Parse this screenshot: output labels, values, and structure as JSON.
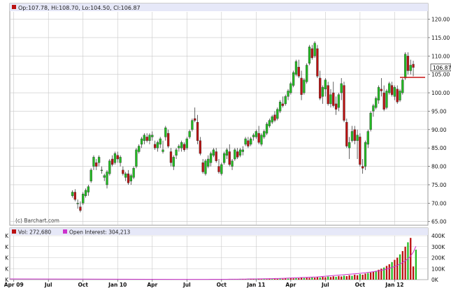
{
  "header": {
    "ohlc_text": "Op:107.78, Hi:108.70, Lo:104.50, Cl:106.87",
    "last_price": "106.87",
    "watermark": "(c) Barchart.com"
  },
  "volume_panel": {
    "vol_text": "Vol: 272,680",
    "oi_text": "Open Interest: 304,213"
  },
  "colors": {
    "up": "#22bb22",
    "down": "#bb1111",
    "oi": "#cc33cc",
    "grid": "#c8c8c8",
    "header_bg": "#e6e8f8",
    "price_line": "#cc2222"
  },
  "chart_data": [
    {
      "type": "candlestick",
      "title": "",
      "ylim": [
        64,
        122
      ],
      "y_ticks": [
        65,
        70,
        75,
        80,
        85,
        90,
        95,
        100,
        105,
        110,
        115,
        120
      ],
      "y_tick_labels": [
        "65.00",
        "70.00",
        "75.00",
        "80.00",
        "85.00",
        "90.00",
        "95.00",
        "100.00",
        "105.00",
        "110.00",
        "115.00",
        "120.00"
      ],
      "x_labels": [
        "Apr 09",
        "Jul",
        "Oct",
        "Jan 10",
        "Apr",
        "Jul",
        "Oct",
        "Jan 11",
        "Apr",
        "Jul",
        "Oct",
        "Jan 12"
      ],
      "x_label_index": [
        1,
        14,
        27,
        40,
        53,
        66,
        79,
        92,
        105,
        118,
        131,
        144
      ],
      "horizontal_line": 104.2,
      "candles": [
        [
          72,
          73.5,
          71.5,
          73
        ],
        [
          73,
          73.8,
          70.5,
          71
        ],
        [
          70,
          71,
          68.5,
          70
        ],
        [
          69,
          70.5,
          67.5,
          68
        ],
        [
          70,
          73,
          69.5,
          72.5
        ],
        [
          72,
          74,
          71.5,
          73.5
        ],
        [
          73,
          75,
          72,
          74.5
        ],
        [
          76,
          79.5,
          75.5,
          79
        ],
        [
          80,
          83,
          79,
          82.5
        ],
        [
          81,
          82,
          79,
          80
        ],
        [
          81,
          83,
          80,
          82.5
        ],
        [
          79,
          80,
          78,
          79
        ],
        [
          77,
          78,
          76,
          77.5
        ],
        [
          75,
          79,
          74,
          78.5
        ],
        [
          78,
          82,
          77.5,
          81.5
        ],
        [
          82,
          83,
          80,
          80.5
        ],
        [
          81,
          84,
          80.5,
          83.5
        ],
        [
          83,
          84,
          81,
          82
        ],
        [
          81,
          83,
          80,
          82.5
        ],
        [
          79,
          80,
          77.5,
          78
        ],
        [
          77,
          78.5,
          76,
          78
        ],
        [
          78,
          79,
          75,
          75.5
        ],
        [
          76,
          78,
          75,
          77.5
        ],
        [
          77,
          80,
          76.5,
          79.5
        ],
        [
          80,
          85,
          79.5,
          84.5
        ],
        [
          84,
          86,
          83.5,
          85.5
        ],
        [
          86,
          88,
          85,
          87.5
        ],
        [
          87,
          89,
          86,
          88.5
        ],
        [
          88,
          89,
          86.5,
          87
        ],
        [
          87,
          89,
          86,
          88.5
        ],
        [
          88,
          89.5,
          87,
          88.5
        ],
        [
          86,
          87,
          84.5,
          85
        ],
        [
          85,
          87,
          84,
          86.5
        ],
        [
          86,
          88,
          85,
          87.5
        ],
        [
          84,
          87,
          83.5,
          84.5
        ],
        [
          88,
          91,
          87,
          90.5
        ],
        [
          89,
          90,
          85,
          85.5
        ],
        [
          84,
          85,
          80,
          81
        ],
        [
          80,
          83,
          79,
          82.5
        ],
        [
          83,
          85,
          82,
          84.5
        ],
        [
          85,
          86,
          84,
          85.5
        ],
        [
          85,
          87,
          84,
          86.5
        ],
        [
          86,
          86.5,
          84,
          84.5
        ],
        [
          85,
          88,
          84.5,
          87.5
        ],
        [
          88,
          90,
          87.5,
          89.5
        ],
        [
          90,
          93,
          89.5,
          92.5
        ],
        [
          93,
          96,
          92,
          92.5
        ],
        [
          92,
          94,
          86,
          87
        ],
        [
          87,
          88,
          83,
          83.5
        ],
        [
          81,
          82,
          78,
          78.5
        ],
        [
          78,
          82,
          77.5,
          81.5
        ],
        [
          80,
          83,
          79.5,
          82
        ],
        [
          81,
          84,
          80,
          83.5
        ],
        [
          83,
          85,
          82.5,
          84.5
        ],
        [
          84,
          85,
          81,
          81.5
        ],
        [
          80,
          82,
          78,
          78.5
        ],
        [
          78,
          81,
          77.5,
          80.5
        ],
        [
          81,
          84,
          80.5,
          83.5
        ],
        [
          83,
          85,
          82,
          84.5
        ],
        [
          84,
          86,
          80,
          80.5
        ],
        [
          80,
          82,
          79,
          81.5
        ],
        [
          82,
          85,
          81.5,
          84.5
        ],
        [
          84,
          85,
          82,
          82.5
        ],
        [
          83,
          85,
          82.5,
          84.5
        ],
        [
          84,
          85.5,
          83,
          84.5
        ],
        [
          86,
          88,
          85.5,
          87.5
        ],
        [
          87,
          88,
          85,
          85.5
        ],
        [
          86,
          88,
          85.5,
          87.5
        ],
        [
          88,
          89,
          87,
          88.5
        ],
        [
          88,
          90,
          87.5,
          89.5
        ],
        [
          89,
          91,
          86,
          86.5
        ],
        [
          86,
          89,
          85.5,
          88.5
        ],
        [
          88,
          90,
          87.5,
          89.5
        ],
        [
          89,
          92,
          88.5,
          91.5
        ],
        [
          91,
          93,
          90.5,
          92.5
        ],
        [
          92,
          94,
          91.5,
          93.5
        ],
        [
          94,
          95,
          92,
          92.5
        ],
        [
          93,
          96,
          92.5,
          95.5
        ],
        [
          95,
          98,
          94.5,
          97.5
        ],
        [
          97,
          99,
          96,
          96.5
        ],
        [
          97,
          99.5,
          96.5,
          99
        ],
        [
          99,
          101,
          98,
          100.5
        ],
        [
          100,
          103,
          99.5,
          102.5
        ],
        [
          102,
          106,
          101.5,
          105.5
        ],
        [
          105,
          109,
          104.5,
          108.5
        ],
        [
          107,
          109,
          104,
          104.5
        ],
        [
          104,
          106,
          98,
          99.5
        ],
        [
          100,
          104,
          99.5,
          103.5
        ],
        [
          103,
          108,
          102.5,
          107.5
        ],
        [
          108,
          113,
          107.5,
          112.5
        ],
        [
          112,
          113,
          109,
          109.5
        ],
        [
          110,
          114,
          109.5,
          113.5
        ],
        [
          112,
          113,
          104,
          104.5
        ],
        [
          104,
          106,
          98,
          98.5
        ],
        [
          99,
          102,
          97,
          101.5
        ],
        [
          101,
          104,
          99,
          103.5
        ],
        [
          102,
          103,
          96.5,
          97
        ],
        [
          97,
          101,
          96,
          99.5
        ],
        [
          100,
          103,
          96,
          96.5
        ],
        [
          97,
          99,
          94,
          95.5
        ],
        [
          96,
          100,
          95,
          99.5
        ],
        [
          100,
          104,
          98,
          102.5
        ],
        [
          102,
          103,
          92,
          92.5
        ],
        [
          92,
          93,
          85,
          85.5
        ],
        [
          85,
          88,
          82,
          86.5
        ],
        [
          87,
          91,
          86.5,
          89.5
        ],
        [
          90,
          91,
          86,
          87
        ],
        [
          87,
          90,
          82,
          88.5
        ],
        [
          88,
          89,
          80,
          80.5
        ],
        [
          80,
          82,
          78,
          79.5
        ],
        [
          80,
          87,
          79,
          86.5
        ],
        [
          86,
          90,
          85,
          89.5
        ],
        [
          90,
          95,
          89.5,
          94.5
        ],
        [
          95,
          97,
          93.5,
          96.5
        ],
        [
          96,
          99,
          95.5,
          98.5
        ],
        [
          98,
          102,
          97,
          101.5
        ],
        [
          101,
          104,
          99,
          100.5
        ],
        [
          100,
          102,
          95,
          95.5
        ],
        [
          96,
          101,
          95.5,
          100.5
        ],
        [
          100,
          103,
          99.5,
          102.5
        ],
        [
          102,
          103,
          99,
          99.5
        ],
        [
          99,
          102,
          98,
          101.5
        ],
        [
          101,
          102,
          97,
          97.5
        ],
        [
          98,
          101,
          97.5,
          100.5
        ],
        [
          100,
          104,
          99.5,
          103.5
        ],
        [
          104,
          111,
          103.5,
          110.5
        ],
        [
          110,
          111,
          105,
          106
        ],
        [
          106,
          109,
          105,
          107.5
        ],
        [
          107.78,
          108.7,
          104.5,
          106.87
        ]
      ],
      "x_index_offset": 23
    },
    {
      "type": "bar_line",
      "ylim": [
        0,
        400000
      ],
      "y_tick_labels": [
        "0K",
        "100K",
        "200K",
        "300K",
        "400K"
      ],
      "volume": [
        2,
        1,
        2,
        1,
        2,
        3,
        2,
        4,
        3,
        2,
        3,
        2,
        2,
        3,
        2,
        2,
        3,
        4,
        3,
        2,
        3,
        4,
        3,
        5,
        4,
        6,
        5,
        7,
        6,
        8,
        7,
        9,
        8,
        10,
        9,
        12,
        11,
        14,
        13,
        16,
        15,
        18,
        16,
        20,
        18,
        22,
        20,
        25,
        22,
        28,
        24,
        30,
        26,
        33,
        29,
        36,
        32,
        40,
        35,
        45,
        40,
        50,
        45,
        55,
        60,
        65,
        70,
        80,
        90,
        100,
        110,
        125,
        140,
        160,
        180,
        200,
        230,
        260,
        300,
        340,
        380,
        120,
        272.68
      ],
      "open_interest": [
        2,
        2,
        2,
        2,
        2,
        3,
        3,
        3,
        3,
        3,
        3,
        3,
        4,
        4,
        4,
        4,
        5,
        5,
        5,
        6,
        6,
        6,
        6,
        7,
        7,
        8,
        8,
        9,
        9,
        10,
        10,
        11,
        12,
        13,
        14,
        15,
        16,
        17,
        18,
        19,
        20,
        21,
        22,
        23,
        24,
        25,
        27,
        29,
        31,
        33,
        35,
        37,
        39,
        41,
        43,
        45,
        47,
        49,
        51,
        53,
        55,
        57,
        60,
        63,
        66,
        69,
        72,
        76,
        80,
        85,
        90,
        96,
        103,
        111,
        120,
        130,
        142,
        156,
        172,
        190,
        215,
        250,
        304.213
      ]
    }
  ]
}
